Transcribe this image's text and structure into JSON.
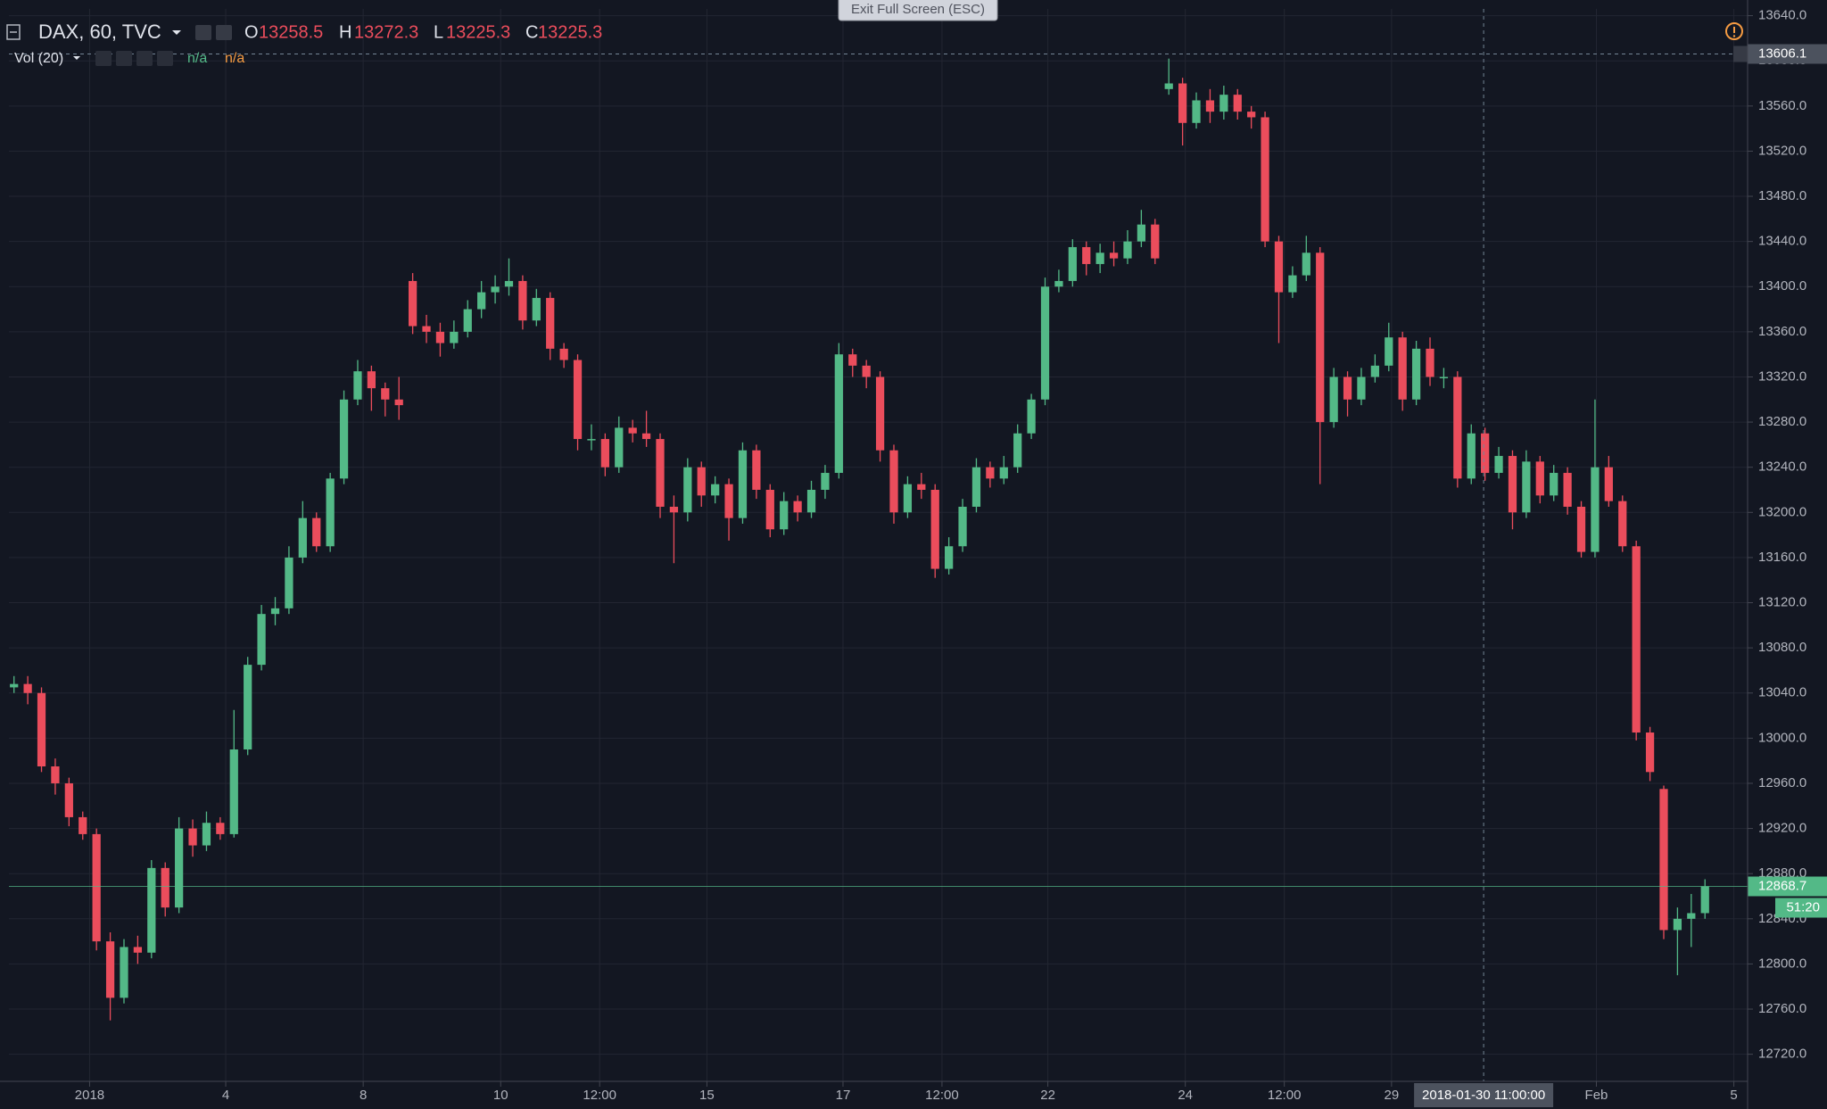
{
  "header": {
    "symbol": "DAX, 60, TVC",
    "ohlc": [
      {
        "label": "O",
        "value": 13258.5
      },
      {
        "label": "H",
        "value": 13272.3
      },
      {
        "label": "L",
        "value": 13225.3
      },
      {
        "label": "C",
        "value": 13225.3
      }
    ],
    "indicator": "Vol (20)",
    "indicator_values": [
      "n/a",
      "n/a"
    ]
  },
  "exit_button": "Exit Full Screen (ESC)",
  "chart_data": {
    "type": "candlestick",
    "up_color": "#53b987",
    "down_color": "#eb4d5c",
    "grid": true,
    "xlim": [
      -0.37,
      126.1
    ],
    "ylim": [
      12696,
      13646
    ],
    "xticks": [
      {
        "value": 5.5,
        "label": "2018"
      },
      {
        "value": 15.4,
        "label": "4"
      },
      {
        "value": 25.4,
        "label": "8"
      },
      {
        "value": 35.4,
        "label": "10"
      },
      {
        "value": 42.6,
        "label": "12:00"
      },
      {
        "value": 50.4,
        "label": "15"
      },
      {
        "value": 60.3,
        "label": "17"
      },
      {
        "value": 67.5,
        "label": "12:00"
      },
      {
        "value": 75.2,
        "label": "22"
      },
      {
        "value": 85.2,
        "label": "24"
      },
      {
        "value": 92.4,
        "label": "12:00"
      },
      {
        "value": 100.2,
        "label": "29"
      },
      {
        "value": 115.1,
        "label": "Feb"
      },
      {
        "value": 125.1,
        "label": "5"
      }
    ],
    "yticks": [
      {
        "value": 12720,
        "label": "12720.0"
      },
      {
        "value": 12760,
        "label": "12760.0"
      },
      {
        "value": 12800,
        "label": "12800.0"
      },
      {
        "value": 12840,
        "label": "12840.0"
      },
      {
        "value": 12880,
        "label": "12880.0"
      },
      {
        "value": 12920,
        "label": "12920.0"
      },
      {
        "value": 12960,
        "label": "12960.0"
      },
      {
        "value": 13000,
        "label": "13000.0"
      },
      {
        "value": 13040,
        "label": "13040.0"
      },
      {
        "value": 13080,
        "label": "13080.0"
      },
      {
        "value": 13120,
        "label": "13120.0"
      },
      {
        "value": 13160,
        "label": "13160.0"
      },
      {
        "value": 13200,
        "label": "13200.0"
      },
      {
        "value": 13240,
        "label": "13240.0"
      },
      {
        "value": 13280,
        "label": "13280.0"
      },
      {
        "value": 13320,
        "label": "13320.0"
      },
      {
        "value": 13360,
        "label": "13360.0"
      },
      {
        "value": 13400,
        "label": "13400.0"
      },
      {
        "value": 13440,
        "label": "13440.0"
      },
      {
        "value": 13480,
        "label": "13480.0"
      },
      {
        "value": 13520,
        "label": "13520.0"
      },
      {
        "value": 13560,
        "label": "13560.0"
      },
      {
        "value": 13600,
        "label": "13600.0"
      },
      {
        "value": 13640,
        "label": "13640.0"
      }
    ],
    "open": [
      13045,
      13048,
      13040,
      12975,
      12960,
      12930,
      12915,
      12820,
      12770,
      12815,
      12810,
      12885,
      12850,
      12920,
      12905,
      12925,
      12915,
      12990,
      13065,
      13110,
      13115,
      13160,
      13195,
      13170,
      13230,
      13300,
      13325,
      13310,
      13300,
      13405,
      13365,
      13360,
      13350,
      13360,
      13380,
      13395,
      13400,
      13405,
      13370,
      13390,
      13345,
      13335,
      13265,
      13265,
      13240,
      13275,
      13270,
      13265,
      13205,
      13200,
      13240,
      13215,
      13225,
      13195,
      13255,
      13220,
      13185,
      13210,
      13200,
      13220,
      13235,
      13340,
      13330,
      13320,
      13255,
      13200,
      13225,
      13220,
      13150,
      13170,
      13205,
      13240,
      13230,
      13240,
      13270,
      13300,
      13400,
      13405,
      13435,
      13420,
      13430,
      13425,
      13440,
      13455,
      13575,
      13580,
      13545,
      13565,
      13555,
      13570,
      13555,
      13550,
      13440,
      13395,
      13410,
      13430,
      13280,
      13320,
      13300,
      13320,
      13330,
      13355,
      13300,
      13345,
      13320,
      13320,
      13230,
      13270,
      13235,
      13250,
      13200,
      13245,
      13215,
      13235,
      13205,
      13165,
      13240,
      13210,
      13170,
      13005,
      12955,
      12830,
      12840,
      12845
    ],
    "high": [
      13055,
      13055,
      13045,
      12982,
      12965,
      12935,
      12920,
      12828,
      12822,
      12825,
      12892,
      12890,
      12930,
      12928,
      12935,
      12930,
      13025,
      13072,
      13118,
      13125,
      13170,
      13210,
      13200,
      13235,
      13308,
      13335,
      13330,
      13315,
      13320,
      13412,
      13375,
      13368,
      13370,
      13388,
      13405,
      13410,
      13425,
      13410,
      13398,
      13395,
      13350,
      13340,
      13278,
      13270,
      13285,
      13282,
      13290,
      13270,
      13215,
      13248,
      13245,
      13232,
      13230,
      13262,
      13260,
      13225,
      13218,
      13215,
      13228,
      13242,
      13350,
      13345,
      13335,
      13325,
      13260,
      13232,
      13235,
      13225,
      13178,
      13212,
      13248,
      13245,
      13250,
      13278,
      13305,
      13408,
      13415,
      13442,
      13440,
      13438,
      13440,
      13450,
      13468,
      13460,
      13602,
      13585,
      13572,
      13575,
      13578,
      13575,
      13560,
      13555,
      13445,
      13418,
      13445,
      13435,
      13328,
      13325,
      13328,
      13340,
      13368,
      13360,
      13352,
      13355,
      13328,
      13325,
      13278,
      13275,
      13258,
      13255,
      13255,
      13250,
      13242,
      13240,
      13210,
      13300,
      13250,
      13215,
      13175,
      13010,
      12958,
      12850,
      12862,
      12875
    ],
    "low": [
      13040,
      13030,
      12970,
      12950,
      12922,
      12910,
      12812,
      12750,
      12765,
      12800,
      12805,
      12842,
      12845,
      12895,
      12900,
      12910,
      12912,
      12985,
      13060,
      13100,
      13110,
      13155,
      13165,
      13165,
      13225,
      13295,
      13290,
      13285,
      13282,
      13358,
      13350,
      13338,
      13345,
      13355,
      13372,
      13385,
      13392,
      13362,
      13365,
      13335,
      13328,
      13255,
      13255,
      13232,
      13235,
      13262,
      13258,
      13195,
      13155,
      13192,
      13205,
      13208,
      13175,
      13190,
      13212,
      13178,
      13180,
      13192,
      13195,
      13212,
      13230,
      13320,
      13310,
      13245,
      13190,
      13195,
      13212,
      13142,
      13145,
      13165,
      13200,
      13222,
      13225,
      13235,
      13265,
      13295,
      13395,
      13400,
      13410,
      13412,
      13418,
      13420,
      13435,
      13420,
      13570,
      13525,
      13540,
      13545,
      13548,
      13548,
      13540,
      13435,
      13350,
      13390,
      13405,
      13225,
      13275,
      13285,
      13295,
      13315,
      13325,
      13290,
      13295,
      13312,
      13310,
      13222,
      13225,
      13228,
      13230,
      13185,
      13195,
      13208,
      13210,
      13198,
      13160,
      13160,
      13205,
      13165,
      12998,
      12962,
      12822,
      12790,
      12815,
      12840
    ],
    "close": [
      13048,
      13040,
      12975,
      12960,
      12930,
      12915,
      12820,
      12770,
      12815,
      12810,
      12885,
      12850,
      12920,
      12905,
      12925,
      12915,
      12990,
      13065,
      13110,
      13115,
      13160,
      13195,
      13170,
      13230,
      13300,
      13325,
      13310,
      13300,
      13295,
      13365,
      13360,
      13350,
      13360,
      13380,
      13395,
      13400,
      13405,
      13370,
      13390,
      13345,
      13335,
      13265,
      13265,
      13240,
      13275,
      13270,
      13265,
      13205,
      13200,
      13240,
      13215,
      13225,
      13195,
      13255,
      13220,
      13185,
      13210,
      13200,
      13220,
      13235,
      13340,
      13330,
      13320,
      13255,
      13200,
      13225,
      13220,
      13150,
      13170,
      13205,
      13240,
      13230,
      13240,
      13270,
      13300,
      13400,
      13405,
      13435,
      13420,
      13430,
      13425,
      13440,
      13455,
      13425,
      13580,
      13545,
      13565,
      13555,
      13570,
      13555,
      13550,
      13440,
      13395,
      13410,
      13430,
      13280,
      13320,
      13300,
      13320,
      13330,
      13355,
      13300,
      13345,
      13320,
      13320,
      13230,
      13270,
      13235,
      13250,
      13200,
      13245,
      13215,
      13235,
      13205,
      13165,
      13240,
      13210,
      13170,
      13005,
      12970,
      12830,
      12840,
      12845,
      12868.7
    ],
    "last_price": 12868.7,
    "countdown": "51:20",
    "crosshair": {
      "x": 106.9,
      "x_label": "2018-01-30 11:00:00",
      "price": 13606.1
    }
  }
}
